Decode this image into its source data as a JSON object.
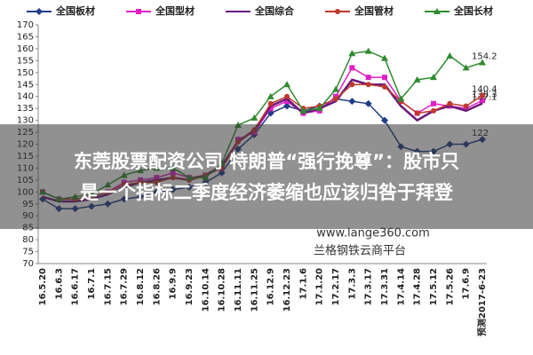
{
  "chart_data": {
    "type": "line",
    "categories": [
      "16.5.20",
      "16.6.3",
      "16.6.17",
      "16.7.1",
      "16.7.15",
      "16.7.29",
      "16.8.12",
      "16.8.26",
      "16.9.9",
      "16.9.23",
      "16.10.14",
      "16.10.28",
      "16.11.11",
      "16.11.25",
      "16.12.9",
      "16.12.23",
      "17.1.6",
      "17.1.20",
      "17.2.17",
      "17.3.3",
      "17.3.17",
      "17.3.31",
      "17.4.14",
      "17.4.28",
      "17.5.12",
      "17.5.26",
      "17.6.9",
      "预测2017-6-23"
    ],
    "series": [
      {
        "name": "全国板材",
        "color": "#1f3c88",
        "marker": "diamond",
        "values": [
          97,
          93,
          93,
          94,
          95,
          97,
          98,
          100,
          101,
          102,
          104,
          108,
          118,
          124,
          133,
          136,
          134,
          136,
          139,
          138,
          137,
          130,
          119,
          117,
          117,
          120,
          120,
          122
        ]
      },
      {
        "name": "全国型材",
        "color": "#e020c8",
        "marker": "square",
        "values": [
          100,
          97,
          97,
          98,
          100,
          104,
          105,
          106,
          108,
          106,
          107,
          110,
          122,
          125,
          135,
          138,
          133,
          134,
          140,
          152,
          148,
          148,
          138,
          133,
          137,
          136,
          135,
          138.3
        ]
      },
      {
        "name": "全国综合",
        "color": "#6a1a7a",
        "marker": "none",
        "values": [
          98,
          96,
          96,
          97,
          99,
          102,
          104,
          105,
          106,
          105,
          107,
          111,
          121,
          126,
          136,
          139,
          133,
          135,
          138,
          147,
          145,
          145,
          136,
          130,
          134,
          136,
          134,
          137.1
        ]
      },
      {
        "name": "全国管材",
        "color": "#c0392b",
        "marker": "circle",
        "values": [
          100,
          97,
          97,
          98,
          100,
          103,
          104,
          104,
          106,
          105,
          107,
          110,
          121,
          126,
          137,
          140,
          135,
          136,
          139,
          145,
          145,
          144,
          138,
          133,
          134,
          137,
          136,
          140.4
        ]
      },
      {
        "name": "全国长材",
        "color": "#2e8b2e",
        "marker": "triangle",
        "values": [
          100,
          97,
          98,
          99,
          103,
          107,
          109,
          110,
          110,
          106,
          106,
          112,
          128,
          131,
          140,
          145,
          134,
          135,
          143,
          158,
          159,
          156,
          139,
          147,
          148,
          157,
          152,
          154.2
        ]
      }
    ],
    "ylim": [
      70,
      170
    ],
    "yticks": [
      70,
      75,
      80,
      85,
      90,
      95,
      100,
      105,
      110,
      115,
      120,
      125,
      130,
      135,
      140,
      145,
      150,
      155,
      160,
      165,
      170
    ],
    "grid": false,
    "legend": "top",
    "annotations": [
      "东莞股票配资公司 特朗普“强行挽尊”：股市只",
      "是一个指标二季度经济萎缩也应该归咎于拜登",
      "www.lange360.com",
      "兰格钢铁云商平台"
    ]
  }
}
